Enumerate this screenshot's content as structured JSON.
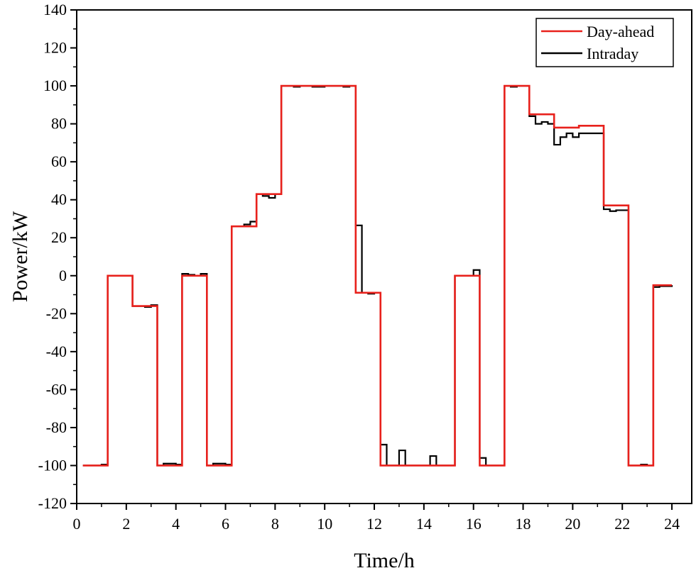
{
  "chart_data": {
    "type": "line",
    "step": true,
    "xlabel": "Time/h",
    "ylabel": "Power/kW",
    "xlim": [
      0,
      24.8
    ],
    "ylim": [
      -120,
      140
    ],
    "xticks": [
      0,
      2,
      4,
      6,
      8,
      10,
      12,
      14,
      16,
      18,
      20,
      22,
      24
    ],
    "yticks": [
      -120,
      -100,
      -80,
      -60,
      -40,
      -20,
      0,
      20,
      40,
      60,
      80,
      100,
      120,
      140
    ],
    "grid": false,
    "legend": "top-right",
    "series": [
      {
        "name": "Day-ahead",
        "color": "#e8211c",
        "x": [
          0.25,
          1.25,
          2.25,
          3.25,
          4.25,
          5.25,
          6.25,
          7.25,
          8.25,
          9.25,
          10.25,
          11.25,
          12.25,
          13.25,
          14.25,
          15.25,
          16.25,
          17.25,
          18.25,
          19.25,
          20.25,
          21.25,
          22.25,
          23.25,
          24.0
        ],
        "y": [
          -100,
          0,
          -16,
          -100,
          0,
          -100,
          26,
          43,
          100,
          100,
          100,
          -9,
          -100,
          -100,
          -100,
          0,
          -100,
          100,
          85,
          78,
          79,
          37,
          -100,
          -5,
          -5
        ]
      },
      {
        "name": "Intraday",
        "color": "#000000",
        "x": [
          0.25,
          0.5,
          0.75,
          1.0,
          1.25,
          1.5,
          1.75,
          2.0,
          2.25,
          2.5,
          2.75,
          3.0,
          3.25,
          3.5,
          3.75,
          4.0,
          4.25,
          4.5,
          4.75,
          5.0,
          5.25,
          5.5,
          5.75,
          6.0,
          6.25,
          6.5,
          6.75,
          7.0,
          7.25,
          7.5,
          7.75,
          8.0,
          8.25,
          8.5,
          8.75,
          9.0,
          9.25,
          9.5,
          9.75,
          10.0,
          10.25,
          10.5,
          10.75,
          11.0,
          11.25,
          11.5,
          11.75,
          12.0,
          12.25,
          12.5,
          12.75,
          13.0,
          13.25,
          13.5,
          13.75,
          14.0,
          14.25,
          14.5,
          14.75,
          15.0,
          15.25,
          15.5,
          15.75,
          16.0,
          16.25,
          16.5,
          16.75,
          17.0,
          17.25,
          17.5,
          17.75,
          18.0,
          18.25,
          18.5,
          18.75,
          19.0,
          19.25,
          19.5,
          19.75,
          20.0,
          20.25,
          20.5,
          20.75,
          21.0,
          21.25,
          21.5,
          21.75,
          22.0,
          22.25,
          22.5,
          22.75,
          23.0,
          23.25,
          23.5,
          23.75,
          24.0
        ],
        "y": [
          -100,
          -100,
          -100,
          -99.5,
          0,
          0,
          0,
          0,
          -16,
          -16,
          -16.5,
          -15.5,
          -100,
          -99,
          -99,
          -99.5,
          1,
          0.5,
          0,
          1,
          -100,
          -99,
          -99,
          -99.5,
          26,
          26,
          27,
          28.5,
          43,
          42,
          41,
          43,
          100,
          100,
          99.5,
          100,
          100,
          99.5,
          99.5,
          100,
          100,
          100,
          99.5,
          100,
          26.5,
          -9,
          -9.5,
          -9,
          -89,
          -100,
          -100,
          -92,
          -100,
          -100,
          -100,
          -100,
          -95,
          -100,
          -100,
          -100,
          0,
          0,
          0,
          3,
          -96,
          -100,
          -100,
          -100,
          100,
          99.5,
          100,
          100,
          84,
          80,
          81,
          80,
          69,
          73,
          75,
          73,
          75,
          75,
          75,
          75,
          35,
          34,
          34.5,
          34.5,
          -100,
          -100,
          -99.5,
          -100,
          -6,
          -5.5,
          -5.5,
          -5
        ]
      }
    ]
  }
}
